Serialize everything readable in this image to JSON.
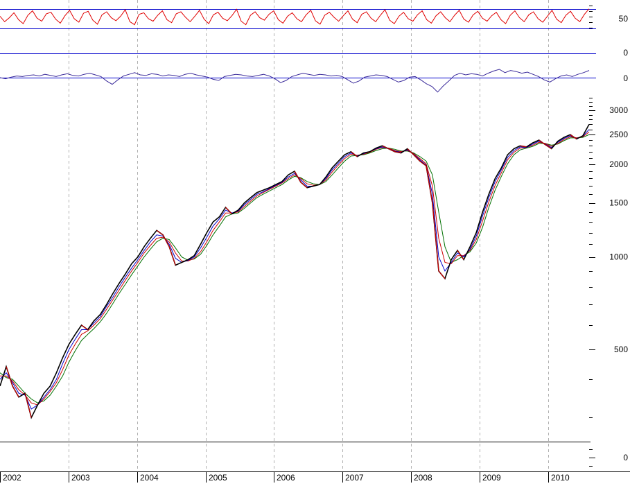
{
  "colors": {
    "background": "#ffffff",
    "grid": "#b0b0b0",
    "reference_line": "#0000cc",
    "rsi_line": "#e00000",
    "momentum_line": "#3a2a9a",
    "price_line": "#000000",
    "price_down_bars": "#cc0000",
    "ma_short": "#0000cc",
    "ma_mid": "#cc0000",
    "ma_long": "#007000",
    "axis": "#000000"
  },
  "chart_data": [
    {
      "type": "line",
      "panel": "rsi",
      "reference_levels": [
        70,
        30
      ],
      "ylim": [
        15,
        85
      ],
      "tick_labels": [
        "50"
      ],
      "series": [
        {
          "values": [
            55,
            44,
            52,
            62,
            48,
            40,
            57,
            66,
            51,
            45,
            60,
            63,
            49,
            41,
            56,
            67,
            50,
            43,
            61,
            65,
            47,
            39,
            58,
            64,
            52,
            46,
            55,
            68,
            44,
            38,
            59,
            62,
            50,
            45,
            57,
            66,
            48,
            42,
            60,
            64,
            53,
            44,
            55,
            67,
            49,
            40,
            58,
            63,
            51,
            46,
            56,
            69,
            45,
            38,
            57,
            64,
            52,
            47,
            59,
            66,
            48,
            41,
            55,
            62,
            50,
            44,
            58,
            67,
            46,
            39,
            57,
            63,
            53,
            45,
            56,
            66,
            49,
            42,
            59,
            64,
            51,
            44,
            57,
            68,
            47,
            40,
            55,
            63,
            50,
            45,
            58,
            66,
            48,
            41,
            56,
            64,
            52,
            44,
            57,
            67,
            49,
            43,
            58,
            65,
            51,
            45,
            56,
            63,
            48,
            40,
            57,
            66,
            52,
            44,
            58,
            64,
            50,
            43,
            55,
            67,
            49,
            42,
            57,
            65,
            51,
            44,
            59,
            70
          ]
        }
      ]
    },
    {
      "type": "line",
      "panel": "momentum",
      "tick_labels": [
        "0",
        "0"
      ],
      "ylim": [
        -5,
        5
      ],
      "series": [
        {
          "values": [
            0,
            -0.2,
            0.1,
            0.3,
            0.2,
            0.4,
            0.5,
            0.3,
            0.6,
            0.4,
            0.2,
            0.5,
            0.7,
            0.4,
            0.3,
            0.6,
            0.8,
            0.5,
            0.2,
            -0.6,
            -1.2,
            -0.4,
            0.3,
            0.6,
            0.9,
            0.5,
            0.4,
            0.7,
            0.6,
            0.3,
            0.5,
            0.4,
            0.2,
            0.6,
            0.8,
            0.5,
            0.3,
            0.1,
            -0.3,
            -0.5,
            0.2,
            0.4,
            0.6,
            0.5,
            0.3,
            0.2,
            0.4,
            0.6,
            0.3,
            -0.2,
            -0.9,
            -0.5,
            0.2,
            0.5,
            0.8,
            0.6,
            0.4,
            0.6,
            0.5,
            0.3,
            0.4,
            0.2,
            -0.4,
            -1.0,
            -0.6,
            0.1,
            0.3,
            0.5,
            0.4,
            0.2,
            -0.3,
            -0.8,
            -0.5,
            0.1,
            0.2,
            -0.4,
            -1.1,
            -1.6,
            -2.6,
            -1.5,
            -0.6,
            0.4,
            0.8,
            0.5,
            0.7,
            0.6,
            0.3,
            0.8,
            1.2,
            1.5,
            0.9,
            1.3,
            1.1,
            0.8,
            1.0,
            0.6,
            0.2,
            -0.4,
            -0.8,
            -0.2,
            0.3,
            0.5,
            0.2,
            0.6,
            0.9,
            1.3
          ]
        }
      ]
    },
    {
      "type": "line",
      "panel": "price",
      "scale": "log",
      "ylim": [
        260,
        3400
      ],
      "tick_labels": [
        "3000",
        "2500",
        "2000",
        "1500",
        "1000",
        "500",
        "0"
      ],
      "x_tick_labels": [
        "2002",
        "2003",
        "2004",
        "2005",
        "2006",
        "2007",
        "2008",
        "2009",
        "2010"
      ],
      "x_start_year": 2002.0,
      "x_end_year": 2010.6,
      "series": [
        {
          "role": "price",
          "values": [
            380,
            440,
            380,
            350,
            360,
            300,
            330,
            360,
            380,
            420,
            470,
            520,
            560,
            600,
            580,
            620,
            650,
            700,
            760,
            820,
            880,
            950,
            1000,
            1080,
            1150,
            1220,
            1180,
            1080,
            940,
            960,
            980,
            1010,
            1100,
            1200,
            1300,
            1350,
            1450,
            1380,
            1420,
            1500,
            1560,
            1620,
            1650,
            1680,
            1720,
            1760,
            1850,
            1900,
            1750,
            1680,
            1700,
            1720,
            1820,
            1950,
            2050,
            2150,
            2200,
            2120,
            2180,
            2200,
            2260,
            2300,
            2250,
            2200,
            2180,
            2250,
            2150,
            2050,
            1980,
            1500,
            900,
            850,
            980,
            1050,
            980,
            1080,
            1200,
            1400,
            1600,
            1800,
            1950,
            2150,
            2250,
            2300,
            2280,
            2350,
            2400,
            2320,
            2250,
            2380,
            2450,
            2500,
            2420,
            2480,
            2700
          ]
        },
        {
          "role": "ma-short",
          "values": [
            400,
            420,
            390,
            360,
            355,
            320,
            330,
            350,
            370,
            400,
            450,
            500,
            540,
            580,
            580,
            610,
            640,
            690,
            740,
            800,
            860,
            920,
            980,
            1050,
            1120,
            1180,
            1170,
            1100,
            990,
            960,
            975,
            1000,
            1070,
            1160,
            1260,
            1330,
            1420,
            1390,
            1410,
            1480,
            1540,
            1600,
            1630,
            1670,
            1710,
            1750,
            1820,
            1870,
            1780,
            1700,
            1700,
            1720,
            1800,
            1920,
            2020,
            2120,
            2180,
            2130,
            2170,
            2200,
            2250,
            2280,
            2250,
            2210,
            2190,
            2230,
            2160,
            2070,
            1990,
            1600,
            1000,
            900,
            960,
            1030,
            1000,
            1060,
            1170,
            1360,
            1560,
            1760,
            1920,
            2110,
            2220,
            2280,
            2270,
            2330,
            2380,
            2330,
            2270,
            2360,
            2430,
            2480,
            2430,
            2470,
            2600
          ]
        },
        {
          "role": "ma-mid",
          "values": [
            410,
            410,
            395,
            370,
            355,
            335,
            330,
            345,
            365,
            390,
            430,
            480,
            520,
            560,
            575,
            600,
            630,
            675,
            725,
            780,
            840,
            900,
            960,
            1030,
            1090,
            1150,
            1160,
            1120,
            1030,
            970,
            970,
            990,
            1040,
            1120,
            1220,
            1300,
            1390,
            1390,
            1400,
            1460,
            1520,
            1580,
            1620,
            1660,
            1700,
            1740,
            1800,
            1850,
            1800,
            1730,
            1710,
            1720,
            1780,
            1890,
            1990,
            2090,
            2160,
            2140,
            2160,
            2190,
            2240,
            2270,
            2260,
            2220,
            2200,
            2220,
            2170,
            2090,
            2010,
            1700,
            1150,
            960,
            950,
            1010,
            1010,
            1050,
            1140,
            1310,
            1510,
            1710,
            1880,
            2070,
            2190,
            2260,
            2270,
            2310,
            2360,
            2340,
            2290,
            2340,
            2410,
            2460,
            2440,
            2460,
            2550
          ]
        },
        {
          "role": "ma-long",
          "values": [
            420,
            405,
            400,
            380,
            360,
            345,
            335,
            340,
            355,
            380,
            410,
            455,
            495,
            535,
            560,
            585,
            615,
            655,
            705,
            760,
            815,
            875,
            935,
            1000,
            1060,
            1120,
            1150,
            1140,
            1070,
            1000,
            975,
            985,
            1020,
            1090,
            1180,
            1260,
            1350,
            1380,
            1390,
            1440,
            1500,
            1560,
            1600,
            1640,
            1680,
            1720,
            1780,
            1830,
            1810,
            1760,
            1730,
            1720,
            1760,
            1850,
            1950,
            2050,
            2130,
            2140,
            2150,
            2180,
            2220,
            2250,
            2260,
            2240,
            2210,
            2210,
            2180,
            2120,
            2050,
            1850,
            1400,
            1080,
            960,
            980,
            1010,
            1040,
            1110,
            1250,
            1450,
            1650,
            1830,
            2010,
            2150,
            2230,
            2260,
            2290,
            2340,
            2340,
            2310,
            2330,
            2390,
            2440,
            2440,
            2450,
            2500
          ]
        }
      ]
    }
  ]
}
